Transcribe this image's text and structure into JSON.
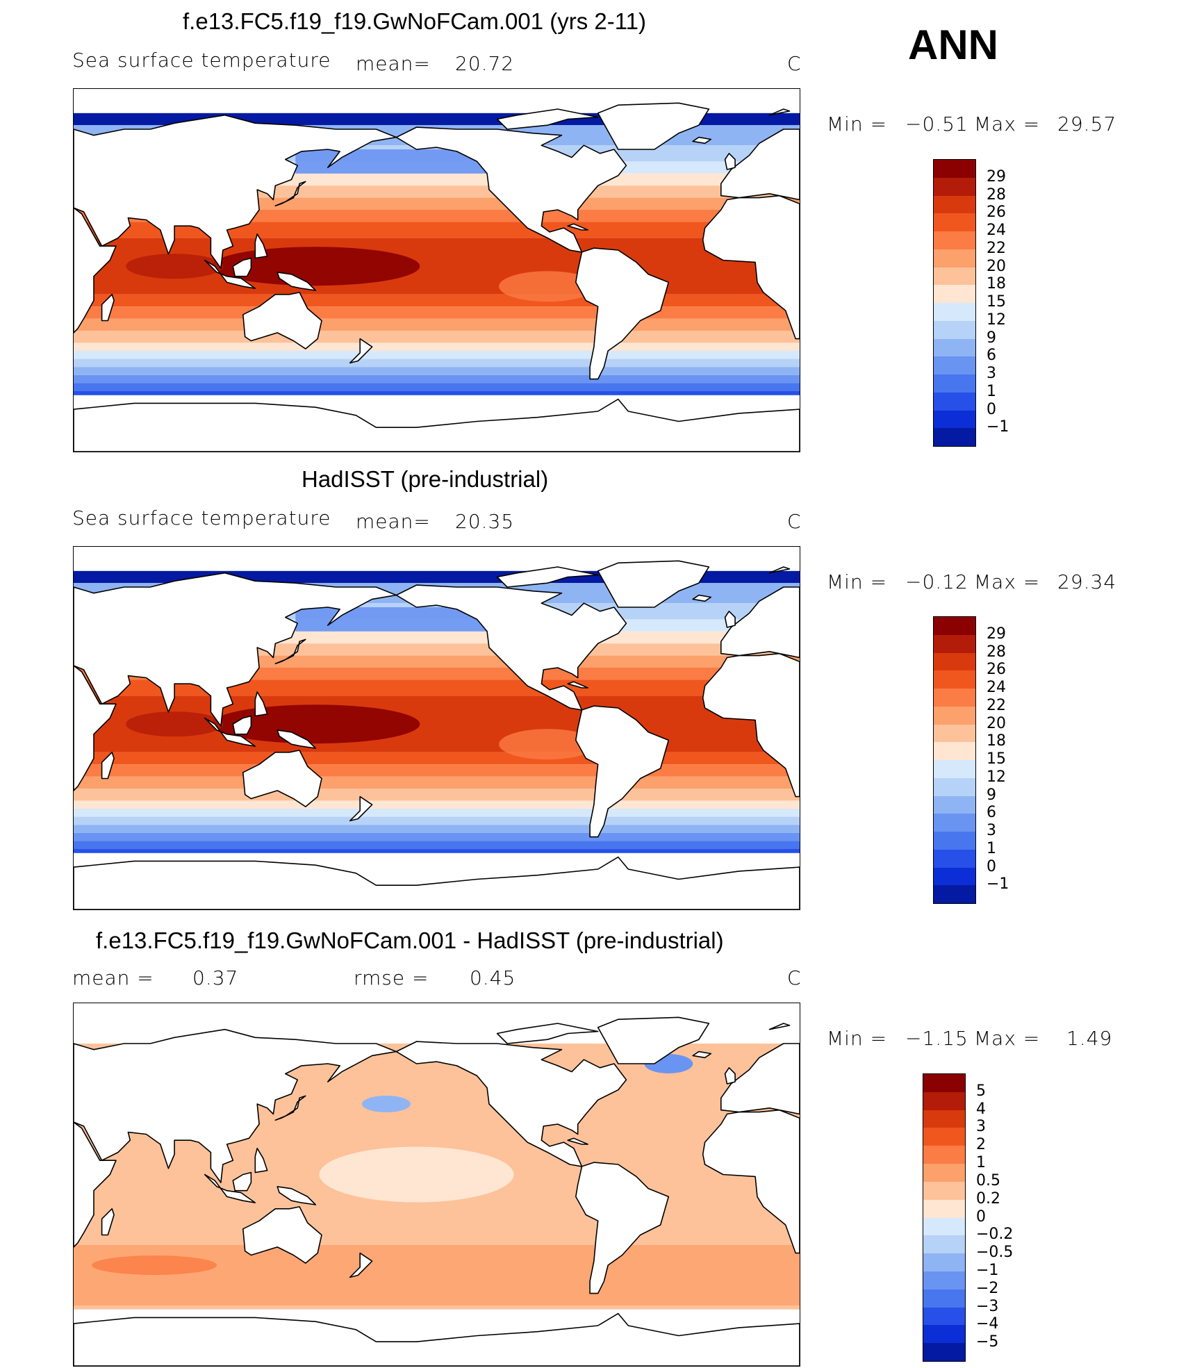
{
  "season": "ANN",
  "colors": {
    "warm": [
      "#8b0000",
      "#b21c08",
      "#d93a0d",
      "#f0571e",
      "#fb7c44",
      "#fca06c",
      "#fdc29a",
      "#fee6d2"
    ],
    "cool": [
      "#d6e8fb",
      "#b6d2f7",
      "#8fb4f3",
      "#6a94f2",
      "#4876ef",
      "#2650e8",
      "#0c2ed6",
      "#041aa2",
      "#00007a"
    ],
    "land": "#ffffff",
    "coast": "#000000"
  },
  "panels": [
    {
      "title": "f.e13.FC5.f19_f19.GwNoFCam.001 (yrs 2-11)",
      "left_label": "Sea surface temperature",
      "stat1_label": "mean=",
      "stat1_value": "20.72",
      "stat2_label": "",
      "stat2_value": "",
      "unit": "C",
      "min_label": "Min =",
      "min_value": "−0.51",
      "max_label": "Max =",
      "max_value": "29.57",
      "colorbar_ticks": [
        "29",
        "28",
        "26",
        "24",
        "22",
        "20",
        "18",
        "15",
        "12",
        "9",
        "6",
        "3",
        "1",
        "0",
        "−1"
      ],
      "field": "sst_model"
    },
    {
      "title": "HadISST (pre-industrial)",
      "left_label": "Sea surface temperature",
      "stat1_label": "mean=",
      "stat1_value": "20.35",
      "stat2_label": "",
      "stat2_value": "",
      "unit": "C",
      "min_label": "Min =",
      "min_value": "−0.12",
      "max_label": "Max =",
      "max_value": "29.34",
      "colorbar_ticks": [
        "29",
        "28",
        "26",
        "24",
        "22",
        "20",
        "18",
        "15",
        "12",
        "9",
        "6",
        "3",
        "1",
        "0",
        "−1"
      ],
      "field": "sst_obs"
    },
    {
      "title": "f.e13.FC5.f19_f19.GwNoFCam.001 - HadISST (pre-industrial)",
      "left_label": "mean =",
      "stat1_label": "",
      "stat1_value": "0.37",
      "stat2_label": "rmse =",
      "stat2_value": "0.45",
      "unit": "C",
      "min_label": "Min =",
      "min_value": "−1.15",
      "max_label": "Max =",
      "max_value": "1.49",
      "colorbar_ticks": [
        "5",
        "4",
        "3",
        "2",
        "1",
        "0.5",
        "0.2",
        "0",
        "−0.2",
        "−0.5",
        "−1",
        "−2",
        "−3",
        "−4",
        "−5"
      ],
      "field": "sst_diff"
    }
  ]
}
